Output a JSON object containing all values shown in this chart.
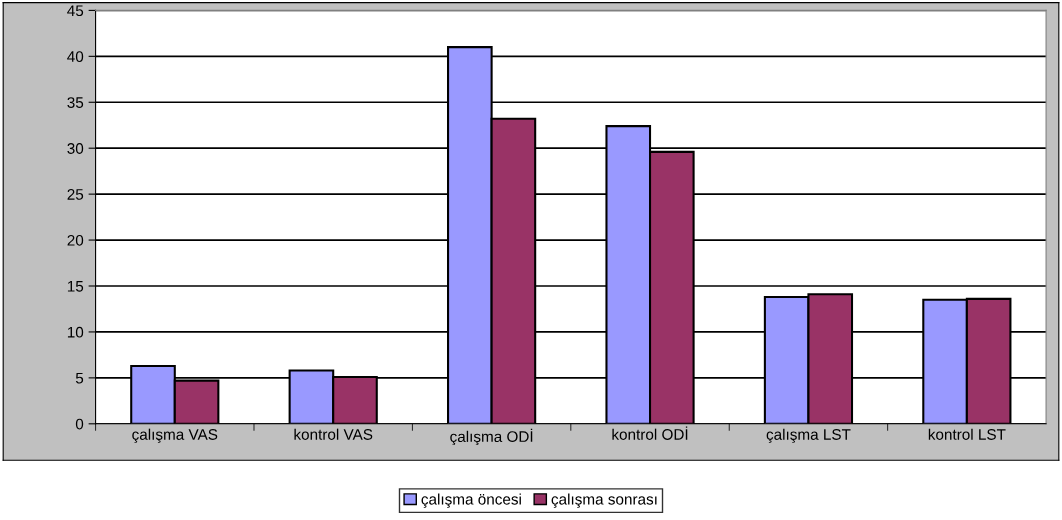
{
  "chart_data": {
    "type": "bar",
    "categories": [
      "çalışma VAS",
      "kontrol VAS",
      "çalışma ODİ",
      "kontrol ODİ",
      "çalışma LST",
      "kontrol LST"
    ],
    "series": [
      {
        "name": "çalışma öncesi",
        "color": "#9999ff",
        "values": [
          6.3,
          5.8,
          41.0,
          32.4,
          13.8,
          13.5
        ]
      },
      {
        "name": "çalışma sonrası",
        "color": "#993366",
        "values": [
          4.7,
          5.1,
          33.2,
          29.6,
          14.1,
          13.6
        ]
      }
    ],
    "ylim": [
      0,
      45
    ],
    "yticks": [
      0,
      5,
      10,
      15,
      20,
      25,
      30,
      35,
      40,
      45
    ],
    "grid": "y",
    "legend": "bottom"
  }
}
